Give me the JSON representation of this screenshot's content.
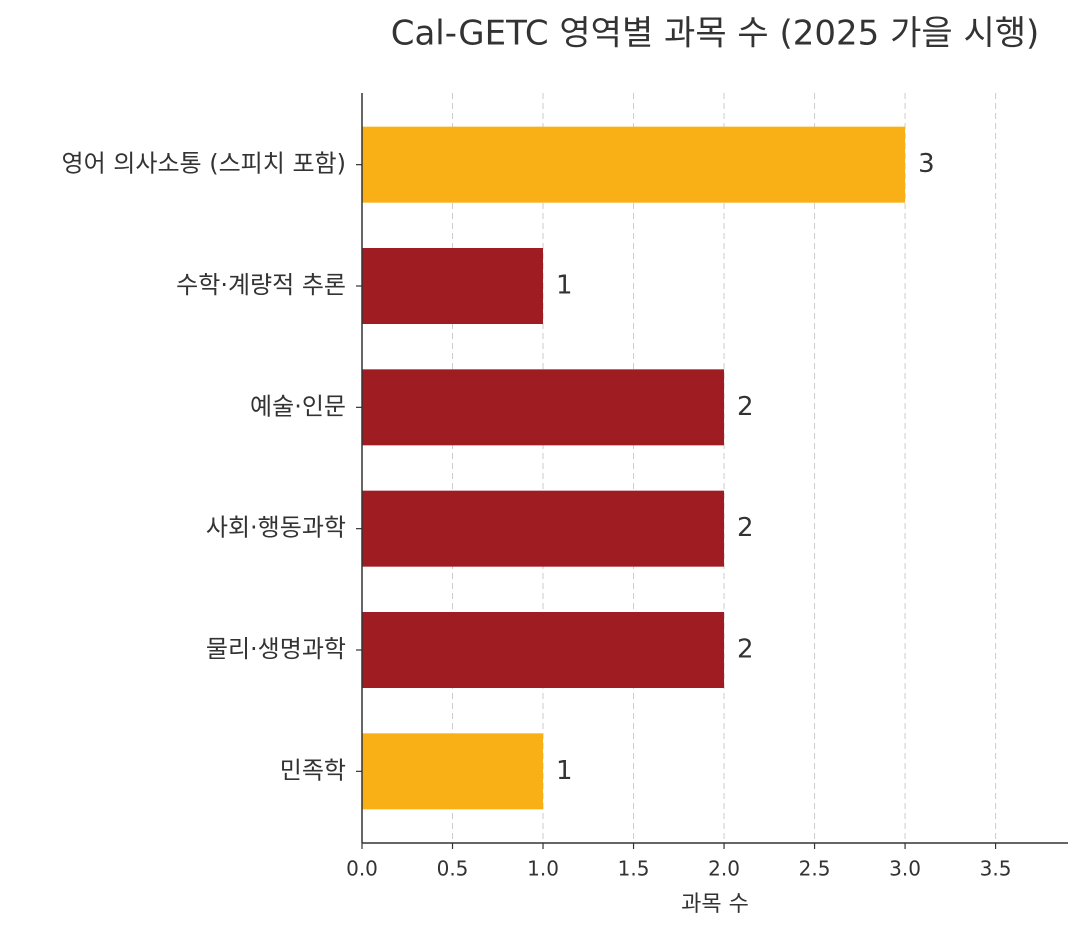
{
  "chart_data": {
    "type": "barh",
    "title": "Cal-GETC 영역별 과목 수 (2025 가을 시행)",
    "xlabel": "과목 수",
    "categories": [
      "영어 의사소통 (스피치 포함)",
      "수학·계량적 추론",
      "예술·인문",
      "사회·행동과학",
      "물리·생명과학",
      "민족학"
    ],
    "values": [
      3,
      1,
      2,
      2,
      2,
      1
    ],
    "colors": [
      "#f9b017",
      "#9e1c22",
      "#9e1c22",
      "#9e1c22",
      "#9e1c22",
      "#f9b017"
    ],
    "xlim": [
      0,
      3.9
    ],
    "xticks": [
      {
        "value": 0,
        "label": "0.0"
      },
      0.5,
      {
        "value": 1,
        "label": "1.0"
      },
      1.5,
      {
        "value": 2,
        "label": "2.0"
      },
      2.5,
      {
        "value": 3,
        "label": "3.0"
      },
      3.5
    ],
    "grid": true
  }
}
